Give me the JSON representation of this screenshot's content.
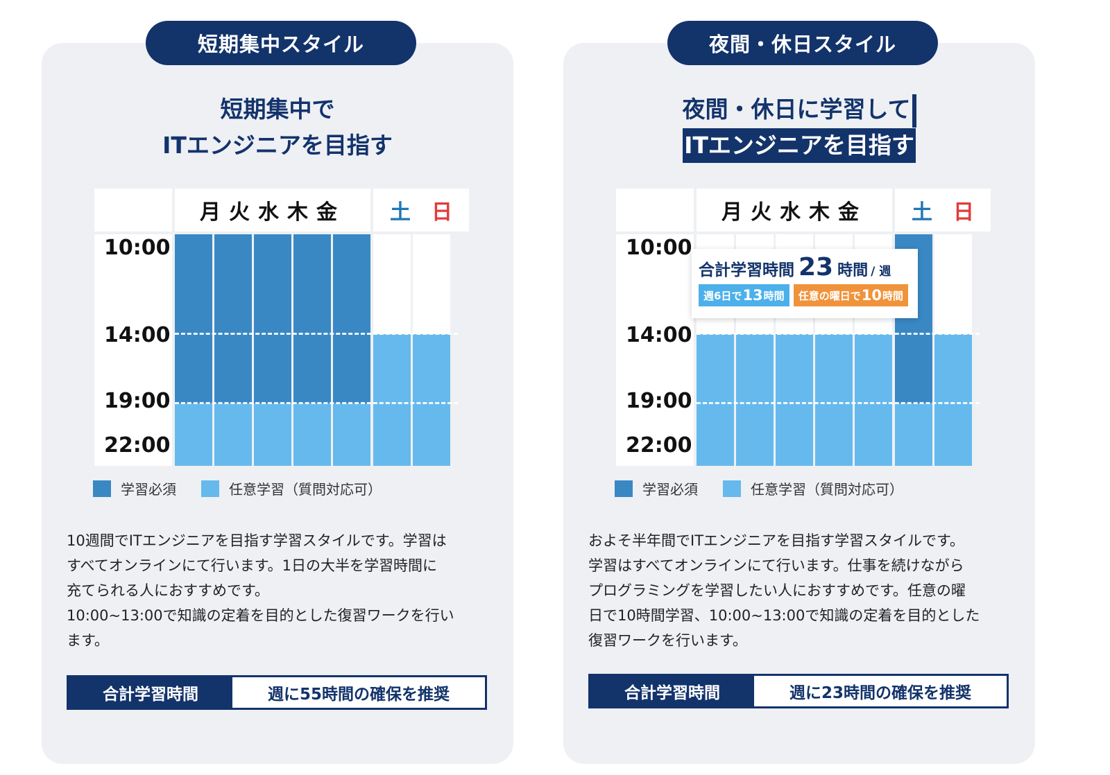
{
  "colors": {
    "navy": "#13336b",
    "required": "#3988c4",
    "optional": "#66b9ec",
    "saturday": "#1f76b5",
    "sunday": "#e23b3b",
    "badge_blue": "#4cb0ea",
    "badge_orange": "#f0933a"
  },
  "left": {
    "pill": "短期集中スタイル",
    "headline_1": "短期集中で",
    "headline_2": "ITエンジニアを目指す",
    "days_weekday": "月火水木金",
    "day_sat": "土",
    "day_sun": "日",
    "times": [
      "10:00",
      "14:00",
      "19:00",
      "22:00"
    ],
    "legend_required": "学習必須",
    "legend_optional": "任意学習（質問対応可）",
    "description": "10週間でITエンジニアを目指す学習スタイルです。学習は\nすべてオンラインにて行います。1日の大半を学習時間に\n充てられる人におすすめです。\n10:00~13:00で知識の定着を目的とした復習ワークを行い\nます。",
    "total_label": "合計学習時間",
    "total_value": "週に55時間の確保を推奨"
  },
  "right": {
    "pill": "夜間・休日スタイル",
    "headline_1": "夜間・休日に学習して",
    "headline_2": "ITエンジニアを目指す",
    "days_weekday": "月火水木金",
    "day_sat": "土",
    "day_sun": "日",
    "times": [
      "10:00",
      "14:00",
      "19:00",
      "22:00"
    ],
    "popup": {
      "label": "合計学習時間",
      "hours": "23",
      "unit": "時間",
      "per": "/ 週",
      "badge1_pre": "週6日で",
      "badge1_num": "13",
      "badge1_post": "時間",
      "badge2_pre": "任意の曜日で",
      "badge2_num": "10",
      "badge2_post": "時間"
    },
    "legend_required": "学習必須",
    "legend_optional": "任意学習（質問対応可）",
    "description": "およそ半年間でITエンジニアを目指す学習スタイルです。\n学習はすべてオンラインにて行います。仕事を続けながら\nプログラミングを学習したい人におすすめです。任意の曜\n日で10時間学習、10:00~13:00で知識の定着を目的とした\n復習ワークを行います。",
    "total_label": "合計学習時間",
    "total_value": "週に23時間の確保を推奨"
  }
}
